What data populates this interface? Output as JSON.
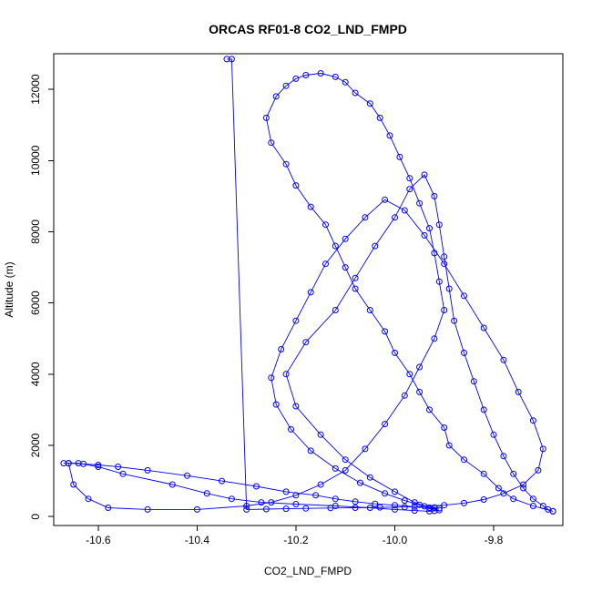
{
  "chart_data": {
    "type": "line",
    "title": "ORCAS RF01-8 CO2_LND_FMPD",
    "xlabel": "CO2_LND_FMPD",
    "ylabel": "Altitude (m)",
    "xlim": [
      -10.69,
      -9.66
    ],
    "ylim": [
      -250,
      13000
    ],
    "xticks": [
      -10.6,
      -10.4,
      -10.2,
      -10.0,
      -9.8
    ],
    "xtick_labels": [
      "-10.6",
      "-10.4",
      "-10.2",
      "-10.0",
      "-9.8"
    ],
    "yticks": [
      0,
      2000,
      4000,
      6000,
      8000,
      10000,
      12000
    ],
    "ytick_labels": [
      "0",
      "2000",
      "4000",
      "6000",
      "8000",
      "10000",
      "12000"
    ],
    "grid": false,
    "colors": {
      "series": "#0000ff",
      "axes": "#000000",
      "background": "#ffffff"
    },
    "series": [
      {
        "x": [
          -9.68,
          -9.72,
          -9.76,
          -9.79,
          -9.82,
          -9.86,
          -9.89,
          -9.9,
          -9.93,
          -9.95,
          -9.97,
          -10.0,
          -10.02,
          -10.05,
          -10.08,
          -10.1,
          -10.12,
          -10.14,
          -10.17,
          -10.2,
          -10.22,
          -10.25,
          -10.26,
          -10.24,
          -10.22,
          -10.2,
          -10.18,
          -10.15,
          -10.12,
          -10.1,
          -10.08,
          -10.05,
          -10.03,
          -10.01,
          -9.99,
          -9.97,
          -9.95,
          -9.93,
          -9.92,
          -9.91,
          -9.9,
          -9.92,
          -9.95,
          -9.98,
          -10.02,
          -10.06,
          -10.1,
          -10.15,
          -10.2,
          -10.25,
          -10.3,
          -10.4,
          -10.5,
          -10.58,
          -10.62,
          -10.65,
          -10.66,
          -10.64,
          -10.6,
          -10.55,
          -10.45,
          -10.38,
          -10.33,
          -10.27,
          -10.2,
          -10.12,
          -10.05,
          -10.0,
          -9.96,
          -9.93,
          -9.92,
          -9.91,
          -9.93,
          -9.96,
          -10.0,
          -10.05,
          -10.1,
          -10.15,
          -10.2,
          -10.22,
          -10.18,
          -10.12,
          -10.08,
          -10.04,
          -10.0,
          -9.97,
          -9.94,
          -9.92,
          -9.91,
          -9.9,
          -9.89,
          -9.88,
          -9.86,
          -9.84,
          -9.82,
          -9.8,
          -9.78,
          -9.76,
          -9.74,
          -9.72,
          -9.7,
          -9.69,
          -9.68
        ],
        "y": [
          150,
          300,
          500,
          800,
          1200,
          1600,
          2000,
          2500,
          3000,
          3500,
          4000,
          4600,
          5200,
          5800,
          6400,
          7000,
          7600,
          8200,
          8700,
          9300,
          9900,
          10500,
          11200,
          11800,
          12100,
          12300,
          12400,
          12450,
          12350,
          12200,
          11900,
          11600,
          11200,
          10700,
          10100,
          9500,
          8800,
          8100,
          7400,
          6600,
          5800,
          5000,
          4200,
          3400,
          2600,
          1900,
          1300,
          900,
          600,
          400,
          300,
          200,
          200,
          250,
          500,
          900,
          1500,
          1500,
          1400,
          1200,
          900,
          650,
          500,
          400,
          350,
          300,
          250,
          200,
          170,
          150,
          160,
          180,
          250,
          400,
          700,
          1100,
          1600,
          2300,
          3100,
          4000,
          4900,
          5800,
          6700,
          7600,
          8400,
          9200,
          9600,
          9000,
          8200,
          7300,
          6400,
          5500,
          4600,
          3800,
          3000,
          2300,
          1700,
          1200,
          800,
          500,
          300,
          200,
          150
        ]
      },
      {
        "x": [
          -10.67,
          -10.66,
          -10.63,
          -10.6,
          -10.56,
          -10.5,
          -10.42,
          -10.35,
          -10.28,
          -10.22,
          -10.16,
          -10.12,
          -10.08,
          -10.04,
          -10.0,
          -9.96,
          -9.93,
          -9.91,
          -9.92,
          -9.95,
          -9.98,
          -10.02,
          -10.07,
          -10.12,
          -10.17,
          -10.21,
          -10.24,
          -10.25,
          -10.23,
          -10.2,
          -10.17,
          -10.14,
          -10.1,
          -10.06,
          -10.02,
          -9.98,
          -9.94,
          -9.9,
          -9.86,
          -9.82,
          -9.78,
          -9.75,
          -9.72,
          -9.7,
          -9.71,
          -9.74,
          -9.78,
          -9.82,
          -9.86,
          -9.9,
          -9.94,
          -9.98,
          -10.03,
          -10.08,
          -10.13,
          -10.18,
          -10.22,
          -10.26,
          -10.3,
          -10.33,
          -10.34
        ],
        "y": [
          1500,
          1500,
          1480,
          1450,
          1400,
          1300,
          1150,
          1000,
          850,
          700,
          600,
          500,
          420,
          360,
          320,
          280,
          250,
          230,
          260,
          330,
          450,
          650,
          950,
          1350,
          1850,
          2450,
          3150,
          3900,
          4700,
          5500,
          6300,
          7100,
          7800,
          8400,
          8900,
          8600,
          7900,
          7100,
          6200,
          5300,
          4400,
          3500,
          2700,
          1900,
          1300,
          900,
          650,
          480,
          380,
          320,
          290,
          270,
          260,
          250,
          240,
          230,
          220,
          210,
          200,
          12850,
          12850
        ]
      }
    ]
  }
}
